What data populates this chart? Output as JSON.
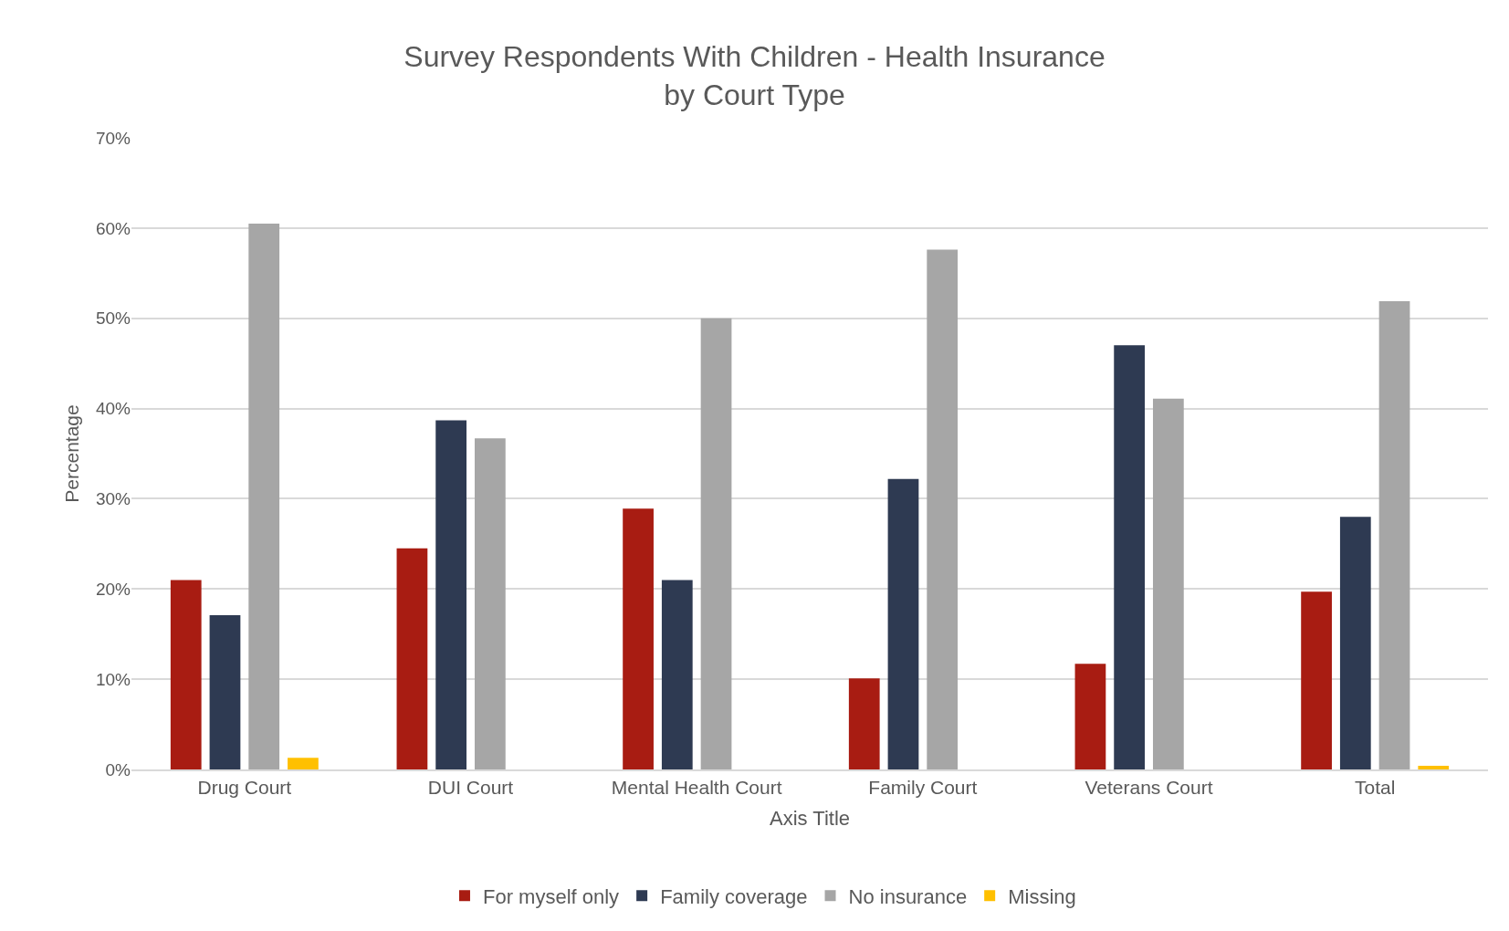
{
  "chart_data": {
    "type": "bar",
    "title": "Survey Respondents With Children - Health Insurance\nby Court Type",
    "xlabel": "Axis Title",
    "ylabel": "Percentage",
    "categories": [
      "Drug Court",
      "DUI Court",
      "Mental Health Court",
      "Family Court",
      "Veterans Court",
      "Total"
    ],
    "series": [
      {
        "name": "For myself only",
        "color": "#a81c12",
        "values": [
          21.0,
          24.5,
          28.9,
          10.1,
          11.7,
          19.7
        ]
      },
      {
        "name": "Family coverage",
        "color": "#2e3a52",
        "values": [
          17.1,
          38.7,
          21.0,
          32.2,
          47.0,
          28.0
        ]
      },
      {
        "name": "No insurance",
        "color": "#a6a6a6",
        "values": [
          60.5,
          36.7,
          50.0,
          57.6,
          41.1,
          51.9
        ]
      },
      {
        "name": "Missing",
        "color": "#ffc000",
        "values": [
          1.3,
          null,
          null,
          null,
          null,
          0.4
        ]
      }
    ],
    "ylim": [
      0,
      70
    ],
    "yticks": [
      {
        "value": 0,
        "label": "0%"
      },
      {
        "value": 10,
        "label": "10%"
      },
      {
        "value": 20,
        "label": "20%"
      },
      {
        "value": 30,
        "label": "30%"
      },
      {
        "value": 40,
        "label": "40%"
      },
      {
        "value": 50,
        "label": "50%"
      },
      {
        "value": 60,
        "label": "60%"
      },
      {
        "value": 70,
        "label": "70%"
      }
    ],
    "grid": "y",
    "legend": "bottom"
  }
}
